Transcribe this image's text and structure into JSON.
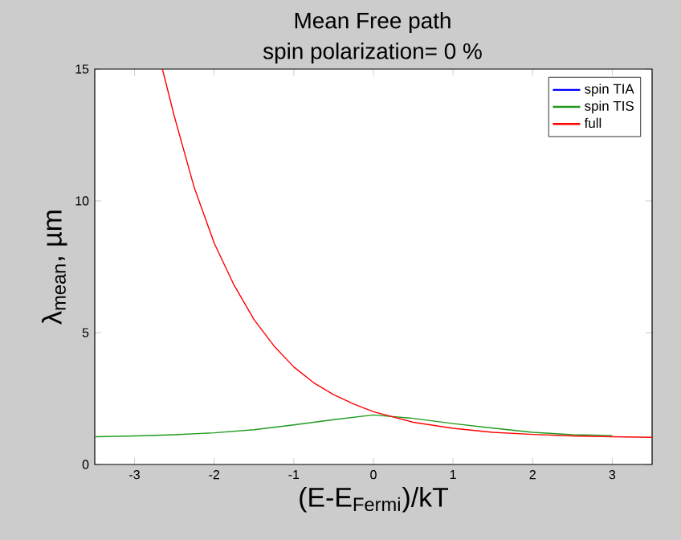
{
  "chart_data": {
    "type": "line",
    "title": "Mean Free path",
    "subtitle": "spin polarization= 0 %",
    "xlabel": "(E-E$_{Fermi}$)/kT",
    "ylabel": "λ$_{mean}$, µm",
    "xlim": [
      -3.5,
      3.5
    ],
    "ylim": [
      0,
      15
    ],
    "xticks": [
      -3,
      -2,
      -1,
      0,
      1,
      2,
      3
    ],
    "yticks": [
      0,
      5,
      10,
      15
    ],
    "grid": false,
    "legend": "top right",
    "marker": "none",
    "line_style": "solid",
    "series": [
      {
        "name": "spin TIA",
        "color": "#0000ff"
      },
      {
        "name": "spin TIS",
        "color": "#1f9a1f",
        "x": [
          -3.5,
          -3,
          -2.5,
          -2,
          -1.5,
          -1,
          -0.5,
          0,
          0.5,
          1,
          1.5,
          2,
          2.5,
          3
        ],
        "values": [
          1.05,
          1.08,
          1.13,
          1.2,
          1.32,
          1.5,
          1.7,
          1.88,
          1.75,
          1.55,
          1.38,
          1.22,
          1.13,
          1.1
        ]
      },
      {
        "name": "full",
        "color": "#ff0000",
        "x": [
          -2.65,
          -2.5,
          -2.25,
          -2,
          -1.75,
          -1.5,
          -1.25,
          -1,
          -0.75,
          -0.5,
          -0.25,
          0,
          0.5,
          1,
          1.5,
          2,
          2.5,
          3,
          3.5
        ],
        "values": [
          15,
          13.2,
          10.5,
          8.4,
          6.8,
          5.5,
          4.5,
          3.7,
          3.1,
          2.65,
          2.3,
          2,
          1.6,
          1.37,
          1.22,
          1.14,
          1.08,
          1.05,
          1.03
        ]
      }
    ]
  }
}
